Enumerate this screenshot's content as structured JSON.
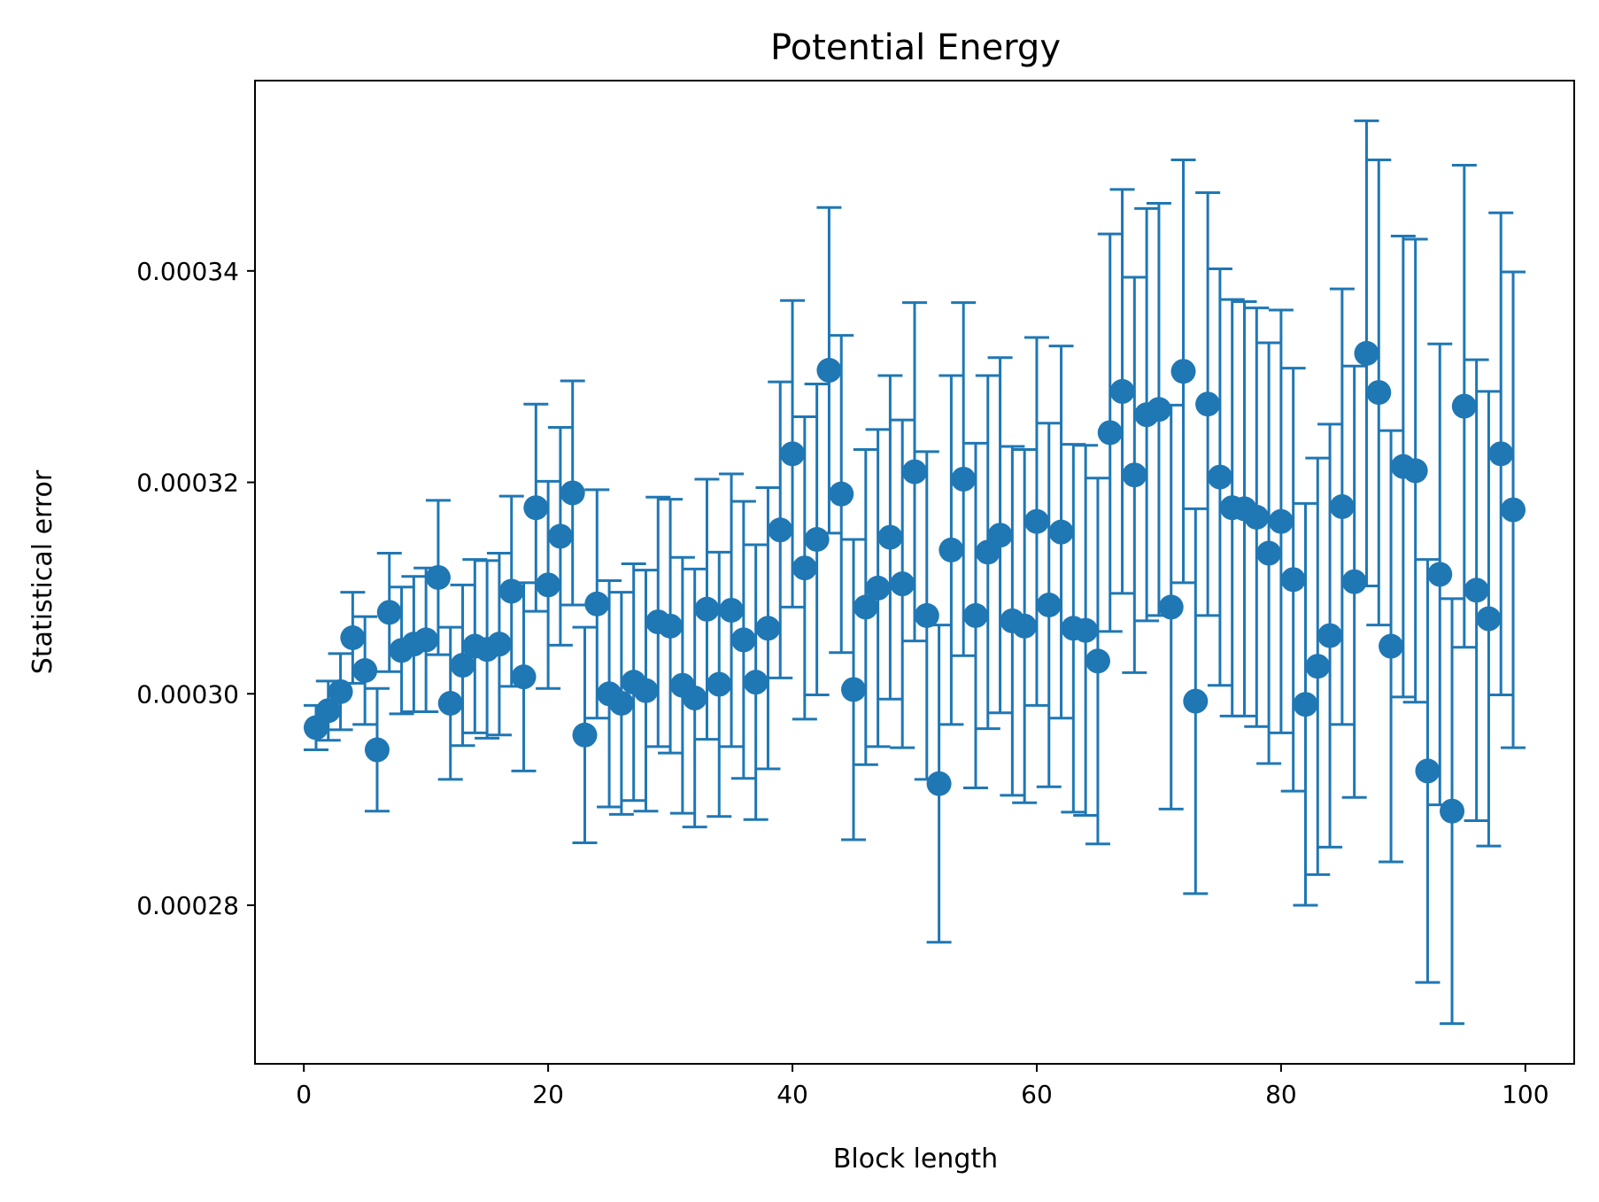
{
  "chart_data": {
    "type": "scatter",
    "title": "Potential Energy",
    "xlabel": "Block length",
    "ylabel": "Statistical error",
    "xlim": [
      -4,
      104
    ],
    "ylim": [
      0.000265,
      0.000358
    ],
    "xticks": [
      0,
      20,
      40,
      60,
      80,
      100
    ],
    "xtick_labels": [
      "0",
      "20",
      "40",
      "60",
      "80",
      "100"
    ],
    "yticks": [
      0.00028,
      0.0003,
      0.00032,
      0.00034
    ],
    "ytick_labels": [
      "0.00028",
      "0.00030",
      "0.00032",
      "0.00034"
    ],
    "grid": false,
    "color": "#1f77b4",
    "x": [
      1,
      2,
      3,
      4,
      5,
      6,
      7,
      8,
      9,
      10,
      11,
      12,
      13,
      14,
      15,
      16,
      17,
      18,
      19,
      20,
      21,
      22,
      23,
      24,
      25,
      26,
      27,
      28,
      29,
      30,
      31,
      32,
      33,
      34,
      35,
      36,
      37,
      38,
      39,
      40,
      41,
      42,
      43,
      44,
      45,
      46,
      47,
      48,
      49,
      50,
      51,
      52,
      53,
      54,
      55,
      56,
      57,
      58,
      59,
      60,
      61,
      62,
      63,
      64,
      65,
      66,
      67,
      68,
      69,
      70,
      71,
      72,
      73,
      74,
      75,
      76,
      77,
      78,
      79,
      80,
      81,
      82,
      83,
      84,
      85,
      86,
      87,
      88,
      89,
      90,
      91,
      92,
      93,
      94,
      95,
      96,
      97,
      98,
      99
    ],
    "y": [
      0.0002968,
      0.0002984,
      0.0003002,
      0.0003053,
      0.0003022,
      0.0002947,
      0.0003077,
      0.0003041,
      0.0003047,
      0.0003051,
      0.000311,
      0.0002991,
      0.0003027,
      0.0003045,
      0.0003042,
      0.0003047,
      0.0003097,
      0.0003016,
      0.0003176,
      0.0003103,
      0.0003149,
      0.000319,
      0.0002961,
      0.0003085,
      0.0003,
      0.0002991,
      0.0003011,
      0.0003003,
      0.0003068,
      0.0003064,
      0.0003008,
      0.0002996,
      0.000308,
      0.0003009,
      0.0003079,
      0.0003051,
      0.0003011,
      0.0003062,
      0.0003155,
      0.0003227,
      0.0003119,
      0.0003146,
      0.0003306,
      0.0003189,
      0.0003004,
      0.0003082,
      0.00031,
      0.0003148,
      0.0003104,
      0.000321,
      0.0003074,
      0.0002915,
      0.0003136,
      0.0003203,
      0.0003074,
      0.0003134,
      0.000315,
      0.0003069,
      0.0003064,
      0.0003163,
      0.0003084,
      0.0003153,
      0.0003062,
      0.000306,
      0.0003031,
      0.0003247,
      0.0003286,
      0.0003207,
      0.0003264,
      0.0003269,
      0.0003082,
      0.0003305,
      0.0002993,
      0.0003274,
      0.0003205,
      0.0003176,
      0.0003175,
      0.0003167,
      0.0003133,
      0.0003163,
      0.0003108,
      0.000299,
      0.0003026,
      0.0003055,
      0.0003177,
      0.0003106,
      0.0003322,
      0.0003285,
      0.0003045,
      0.0003215,
      0.0003211,
      0.0002927,
      0.0003113,
      0.0002889,
      0.0003272,
      0.0003098,
      0.0003071,
      0.0003227,
      0.0003174
    ],
    "yerr": [
      2.1e-06,
      2.8e-06,
      3.6e-06,
      4.3e-06,
      5.1e-06,
      5.8e-06,
      5.6e-06,
      6e-06,
      6.4e-06,
      6.8e-06,
      7.3e-06,
      7.2e-06,
      7.6e-06,
      8.2e-06,
      8.4e-06,
      8.6e-06,
      9e-06,
      8.9e-06,
      9.8e-06,
      9.8e-06,
      1.03e-05,
      1.06e-05,
      1.02e-05,
      1.08e-05,
      1.07e-05,
      1.05e-05,
      1.12e-05,
      1.14e-05,
      1.18e-05,
      1.2e-05,
      1.21e-05,
      1.22e-05,
      1.23e-05,
      1.25e-05,
      1.29e-05,
      1.31e-05,
      1.3e-05,
      1.33e-05,
      1.4e-05,
      1.45e-05,
      1.43e-05,
      1.47e-05,
      1.54e-05,
      1.5e-05,
      1.42e-05,
      1.49e-05,
      1.5e-05,
      1.53e-05,
      1.55e-05,
      1.6e-05,
      1.55e-05,
      1.5e-05,
      1.65e-05,
      1.67e-05,
      1.63e-05,
      1.67e-05,
      1.68e-05,
      1.65e-05,
      1.67e-05,
      1.74e-05,
      1.72e-05,
      1.76e-05,
      1.74e-05,
      1.75e-05,
      1.73e-05,
      1.88e-05,
      1.91e-05,
      1.87e-05,
      1.95e-05,
      1.95e-05,
      1.91e-05,
      2e-05,
      1.82e-05,
      2e-05,
      1.97e-05,
      1.97e-05,
      1.96e-05,
      1.98e-05,
      1.99e-05,
      2e-05,
      2e-05,
      1.9e-05,
      1.97e-05,
      2e-05,
      2.06e-05,
      2.04e-05,
      2.2e-05,
      2.2e-05,
      2.04e-05,
      2.18e-05,
      2.19e-05,
      2e-05,
      2.18e-05,
      2.01e-05,
      2.28e-05,
      2.18e-05,
      2.15e-05,
      2.28e-05,
      2.25e-05
    ]
  }
}
